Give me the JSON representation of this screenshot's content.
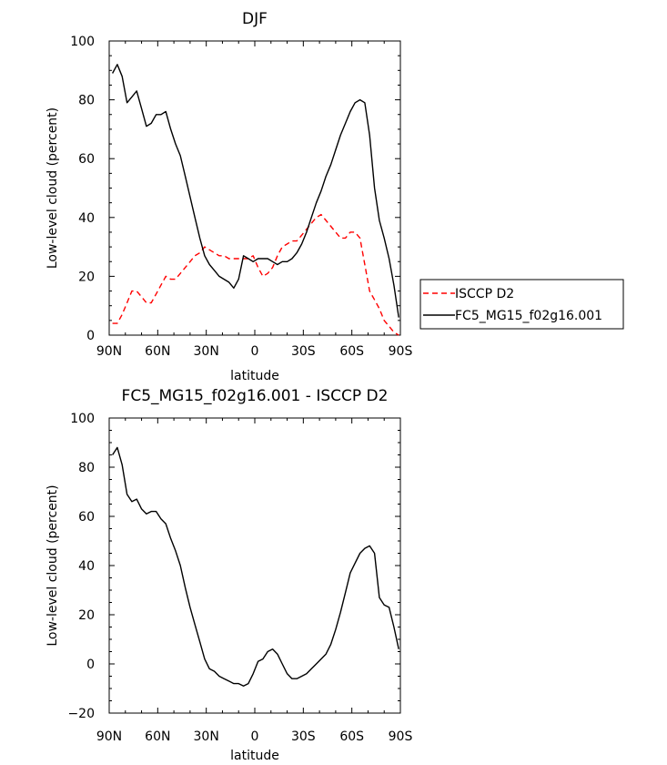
{
  "chart_data": [
    {
      "type": "line",
      "title": "DJF",
      "xlabel": "latitude",
      "ylabel": "Low-level cloud (percent)",
      "xlim": [
        90,
        -90
      ],
      "ylim": [
        0,
        100
      ],
      "xticks": [
        90,
        60,
        30,
        0,
        -30,
        -60,
        -90
      ],
      "xtick_labels": [
        "90N",
        "60N",
        "30N",
        "0",
        "30S",
        "60S",
        "90S"
      ],
      "yticks": [
        0,
        20,
        40,
        60,
        80,
        100
      ],
      "ytick_labels": [
        "0",
        "20",
        "40",
        "60",
        "80",
        "100"
      ],
      "legend_position": "right",
      "series": [
        {
          "name": "ISCCP D2",
          "color": "#ff0000",
          "dash": "dashed",
          "x": [
            88,
            85,
            82,
            79,
            76,
            73,
            70,
            67,
            64,
            61,
            58,
            55,
            52,
            49,
            46,
            43,
            40,
            37,
            34,
            31,
            28,
            25,
            22,
            19,
            16,
            13,
            10,
            7,
            4,
            1,
            -2,
            -5,
            -8,
            -11,
            -14,
            -17,
            -20,
            -23,
            -26,
            -29,
            -32,
            -35,
            -38,
            -41,
            -44,
            -47,
            -50,
            -53,
            -56,
            -59,
            -62,
            -65,
            -68,
            -71,
            -74,
            -77,
            -80,
            -83,
            -86,
            -89
          ],
          "y": [
            4,
            4,
            7,
            11,
            15,
            15,
            13,
            11,
            11,
            14,
            17,
            20,
            19,
            19,
            21,
            23,
            25,
            27,
            28,
            30,
            29,
            28,
            27,
            27,
            26,
            26,
            26,
            26,
            26,
            27,
            23,
            20,
            21,
            23,
            27,
            30,
            31,
            32,
            32,
            34,
            36,
            38,
            40,
            41,
            39,
            37,
            35,
            33,
            33,
            35,
            35,
            33,
            24,
            15,
            12,
            9,
            5,
            3,
            1,
            0
          ]
        },
        {
          "name": "FC5_MG15_f02g16.001",
          "color": "#000000",
          "dash": "solid",
          "x": [
            88,
            85,
            82,
            79,
            76,
            73,
            70,
            67,
            64,
            61,
            58,
            55,
            52,
            49,
            46,
            43,
            40,
            37,
            34,
            31,
            28,
            25,
            22,
            19,
            16,
            13,
            10,
            7,
            4,
            1,
            -2,
            -5,
            -8,
            -11,
            -14,
            -17,
            -20,
            -23,
            -26,
            -29,
            -32,
            -35,
            -38,
            -41,
            -44,
            -47,
            -50,
            -53,
            -56,
            -59,
            -62,
            -65,
            -68,
            -71,
            -74,
            -77,
            -80,
            -83,
            -86,
            -89
          ],
          "y": [
            89,
            92,
            88,
            79,
            81,
            83,
            77,
            71,
            72,
            75,
            75,
            76,
            70,
            65,
            61,
            54,
            47,
            40,
            33,
            27,
            24,
            22,
            20,
            19,
            18,
            16,
            19,
            27,
            26,
            25,
            26,
            26,
            26,
            25,
            24,
            25,
            25,
            26,
            28,
            31,
            35,
            40,
            45,
            49,
            54,
            58,
            63,
            68,
            72,
            76,
            79,
            80,
            79,
            68,
            50,
            39,
            33,
            26,
            17,
            6
          ]
        }
      ]
    },
    {
      "type": "line",
      "title": "FC5_MG15_f02g16.001 - ISCCP D2",
      "xlabel": "latitude",
      "ylabel": "Low-level cloud (percent)",
      "xlim": [
        90,
        -90
      ],
      "ylim": [
        -20,
        100
      ],
      "xticks": [
        90,
        60,
        30,
        0,
        -30,
        -60,
        -90
      ],
      "xtick_labels": [
        "90N",
        "60N",
        "30N",
        "0",
        "30S",
        "60S",
        "90S"
      ],
      "yticks": [
        -20,
        0,
        20,
        40,
        60,
        80,
        100
      ],
      "ytick_labels": [
        "−20",
        "0",
        "20",
        "40",
        "60",
        "80",
        "100"
      ],
      "series": [
        {
          "color": "#000000",
          "dash": "solid",
          "x": [
            88,
            85,
            82,
            79,
            76,
            73,
            70,
            67,
            64,
            61,
            58,
            55,
            52,
            49,
            46,
            43,
            40,
            37,
            34,
            31,
            28,
            25,
            22,
            19,
            16,
            13,
            10,
            7,
            4,
            1,
            -2,
            -5,
            -8,
            -11,
            -14,
            -17,
            -20,
            -23,
            -26,
            -29,
            -32,
            -35,
            -38,
            -41,
            -44,
            -47,
            -50,
            -53,
            -56,
            -59,
            -62,
            -65,
            -68,
            -71,
            -74,
            -77,
            -80,
            -83,
            -86,
            -89
          ],
          "y": [
            85,
            88,
            81,
            69,
            66,
            67,
            63,
            61,
            62,
            62,
            59,
            57,
            51,
            46,
            40,
            31,
            23,
            16,
            9,
            2,
            -2,
            -3,
            -5,
            -6,
            -7,
            -8,
            -8,
            -9,
            -8,
            -4,
            1,
            2,
            5,
            6,
            4,
            0,
            -4,
            -6,
            -6,
            -5,
            -4,
            -2,
            0,
            2,
            4,
            8,
            14,
            21,
            29,
            37,
            41,
            45,
            47,
            48,
            45,
            27,
            24,
            23,
            15,
            6
          ]
        }
      ]
    }
  ]
}
